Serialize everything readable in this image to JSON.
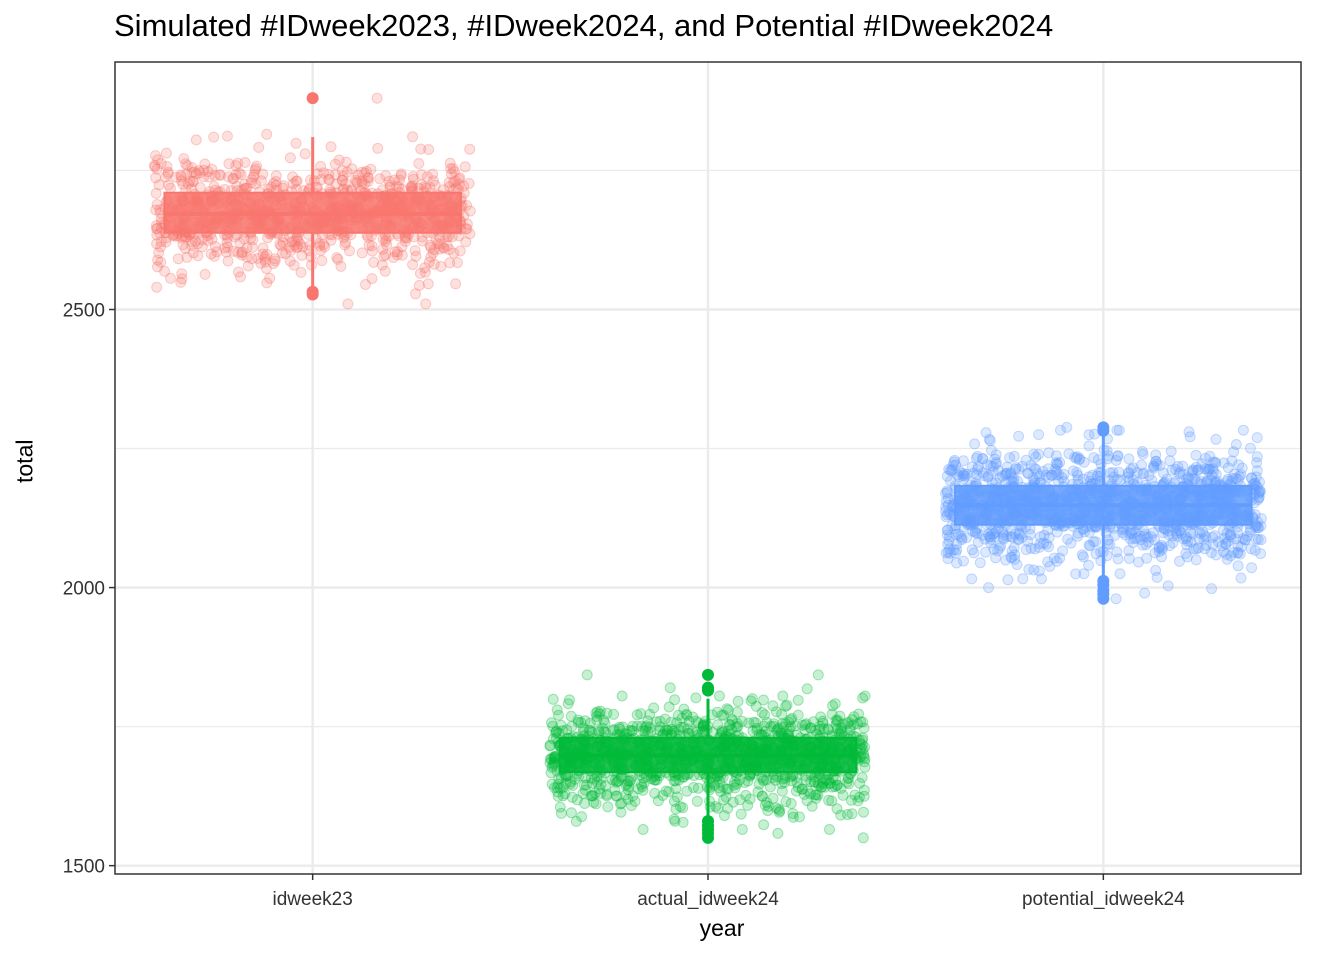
{
  "chart_data": {
    "type": "boxplot",
    "title": "Simulated #IDweek2023, #IDweek2024, and Potential #IDweek2024",
    "xlabel": "year",
    "ylabel": "total",
    "ylim": [
      1485,
      2945
    ],
    "y_ticks": [
      1500,
      2000,
      2500
    ],
    "grid": true,
    "theme": "bw",
    "categories": [
      "idweek23",
      "actual_idweek24",
      "potential_idweek24"
    ],
    "series": [
      {
        "category": "idweek23",
        "color": "#F8766D",
        "n_points": 900,
        "mean": 2672,
        "sd": 50,
        "box": {
          "q1": 2638,
          "median": 2672,
          "q3": 2710,
          "whisker_low": 2530,
          "whisker_high": 2810
        },
        "outliers": [
          2527,
          2532,
          2880
        ],
        "extreme_points": [
          2880,
          2815,
          2810,
          2805,
          2545,
          2540
        ]
      },
      {
        "category": "actual_idweek24",
        "color": "#00BA38",
        "n_points": 1200,
        "mean": 1698,
        "sd": 45,
        "box": {
          "q1": 1668,
          "median": 1698,
          "q3": 1730,
          "whisker_low": 1585,
          "whisker_high": 1800
        },
        "outliers": [
          1550,
          1558,
          1565,
          1572,
          1580,
          1815,
          1820,
          1843
        ],
        "extreme_points": [
          1843,
          1843,
          1820,
          1818,
          1550,
          1558
        ]
      },
      {
        "category": "potential_idweek24",
        "color": "#619CFF",
        "n_points": 1200,
        "mean": 2148,
        "sd": 50,
        "box": {
          "q1": 2113,
          "median": 2148,
          "q3": 2183,
          "whisker_low": 2015,
          "whisker_high": 2278
        },
        "outliers": [
          1980,
          1988,
          1995,
          2005,
          2012,
          2282,
          2288
        ],
        "extreme_points": [
          2288,
          2280,
          2275,
          1980,
          1990,
          2000
        ]
      }
    ]
  }
}
